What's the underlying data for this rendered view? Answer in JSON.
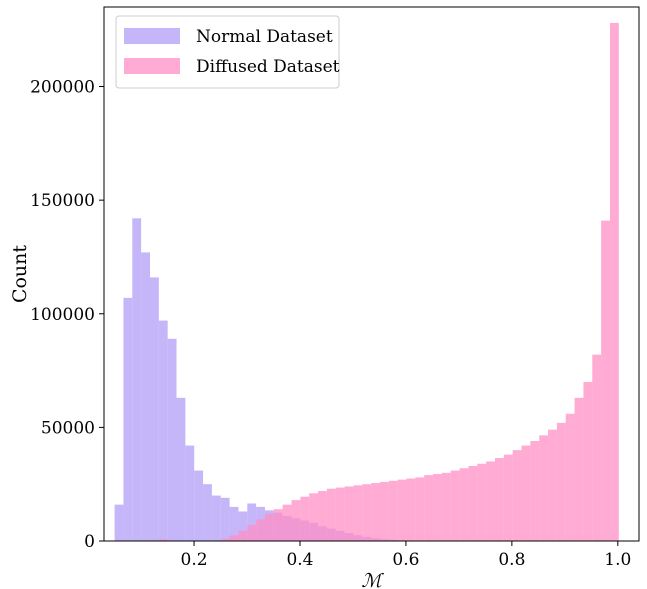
{
  "chart_data": {
    "type": "bar",
    "subtype": "histogram",
    "title": "",
    "xlabel": "ℳ",
    "ylabel": "Count",
    "xlim": [
      0.03,
      1.04
    ],
    "ylim": [
      0,
      235000
    ],
    "xticks": [
      0.2,
      0.4,
      0.6,
      0.8,
      1.0
    ],
    "xtick_labels": [
      "0.2",
      "0.4",
      "0.6",
      "0.8",
      "1.0"
    ],
    "yticks": [
      0,
      50000,
      100000,
      150000,
      200000
    ],
    "ytick_labels": [
      "0",
      "50000",
      "100000",
      "150000",
      "200000"
    ],
    "grid": false,
    "legend_position": "top-left",
    "bin_width": 0.0167,
    "series": [
      {
        "name": "Normal Dataset",
        "color": "#b19cf7",
        "bins_start": 0.05,
        "values": [
          16000,
          107000,
          142000,
          127000,
          116000,
          97000,
          89000,
          63000,
          42000,
          31000,
          25000,
          20000,
          19000,
          15000,
          13000,
          16500,
          15000,
          13500,
          12500,
          11000,
          10000,
          9000,
          8000,
          6500,
          5500,
          4500,
          3500,
          2500,
          1800,
          1200,
          800,
          500,
          300,
          200,
          100,
          50,
          20,
          10,
          0,
          0,
          0,
          0,
          0,
          0,
          0,
          0,
          0,
          0,
          0,
          0,
          0,
          0,
          0,
          0,
          0,
          0,
          0
        ]
      },
      {
        "name": "Diffused Dataset",
        "color": "#ff8fc6",
        "bins_start": 0.05,
        "values": [
          0,
          0,
          0,
          0,
          300,
          800,
          0,
          0,
          0,
          0,
          0,
          0,
          1000,
          2500,
          4500,
          7000,
          9500,
          12000,
          14000,
          16000,
          18000,
          19500,
          21000,
          22000,
          23000,
          23500,
          24000,
          24500,
          25000,
          25500,
          26000,
          26500,
          27000,
          27500,
          28000,
          29000,
          29500,
          30000,
          31000,
          32000,
          33000,
          34000,
          35000,
          36500,
          38000,
          40000,
          42000,
          44000,
          46500,
          49000,
          52000,
          56000,
          63000,
          70000,
          82000,
          141000,
          228000
        ]
      }
    ]
  }
}
